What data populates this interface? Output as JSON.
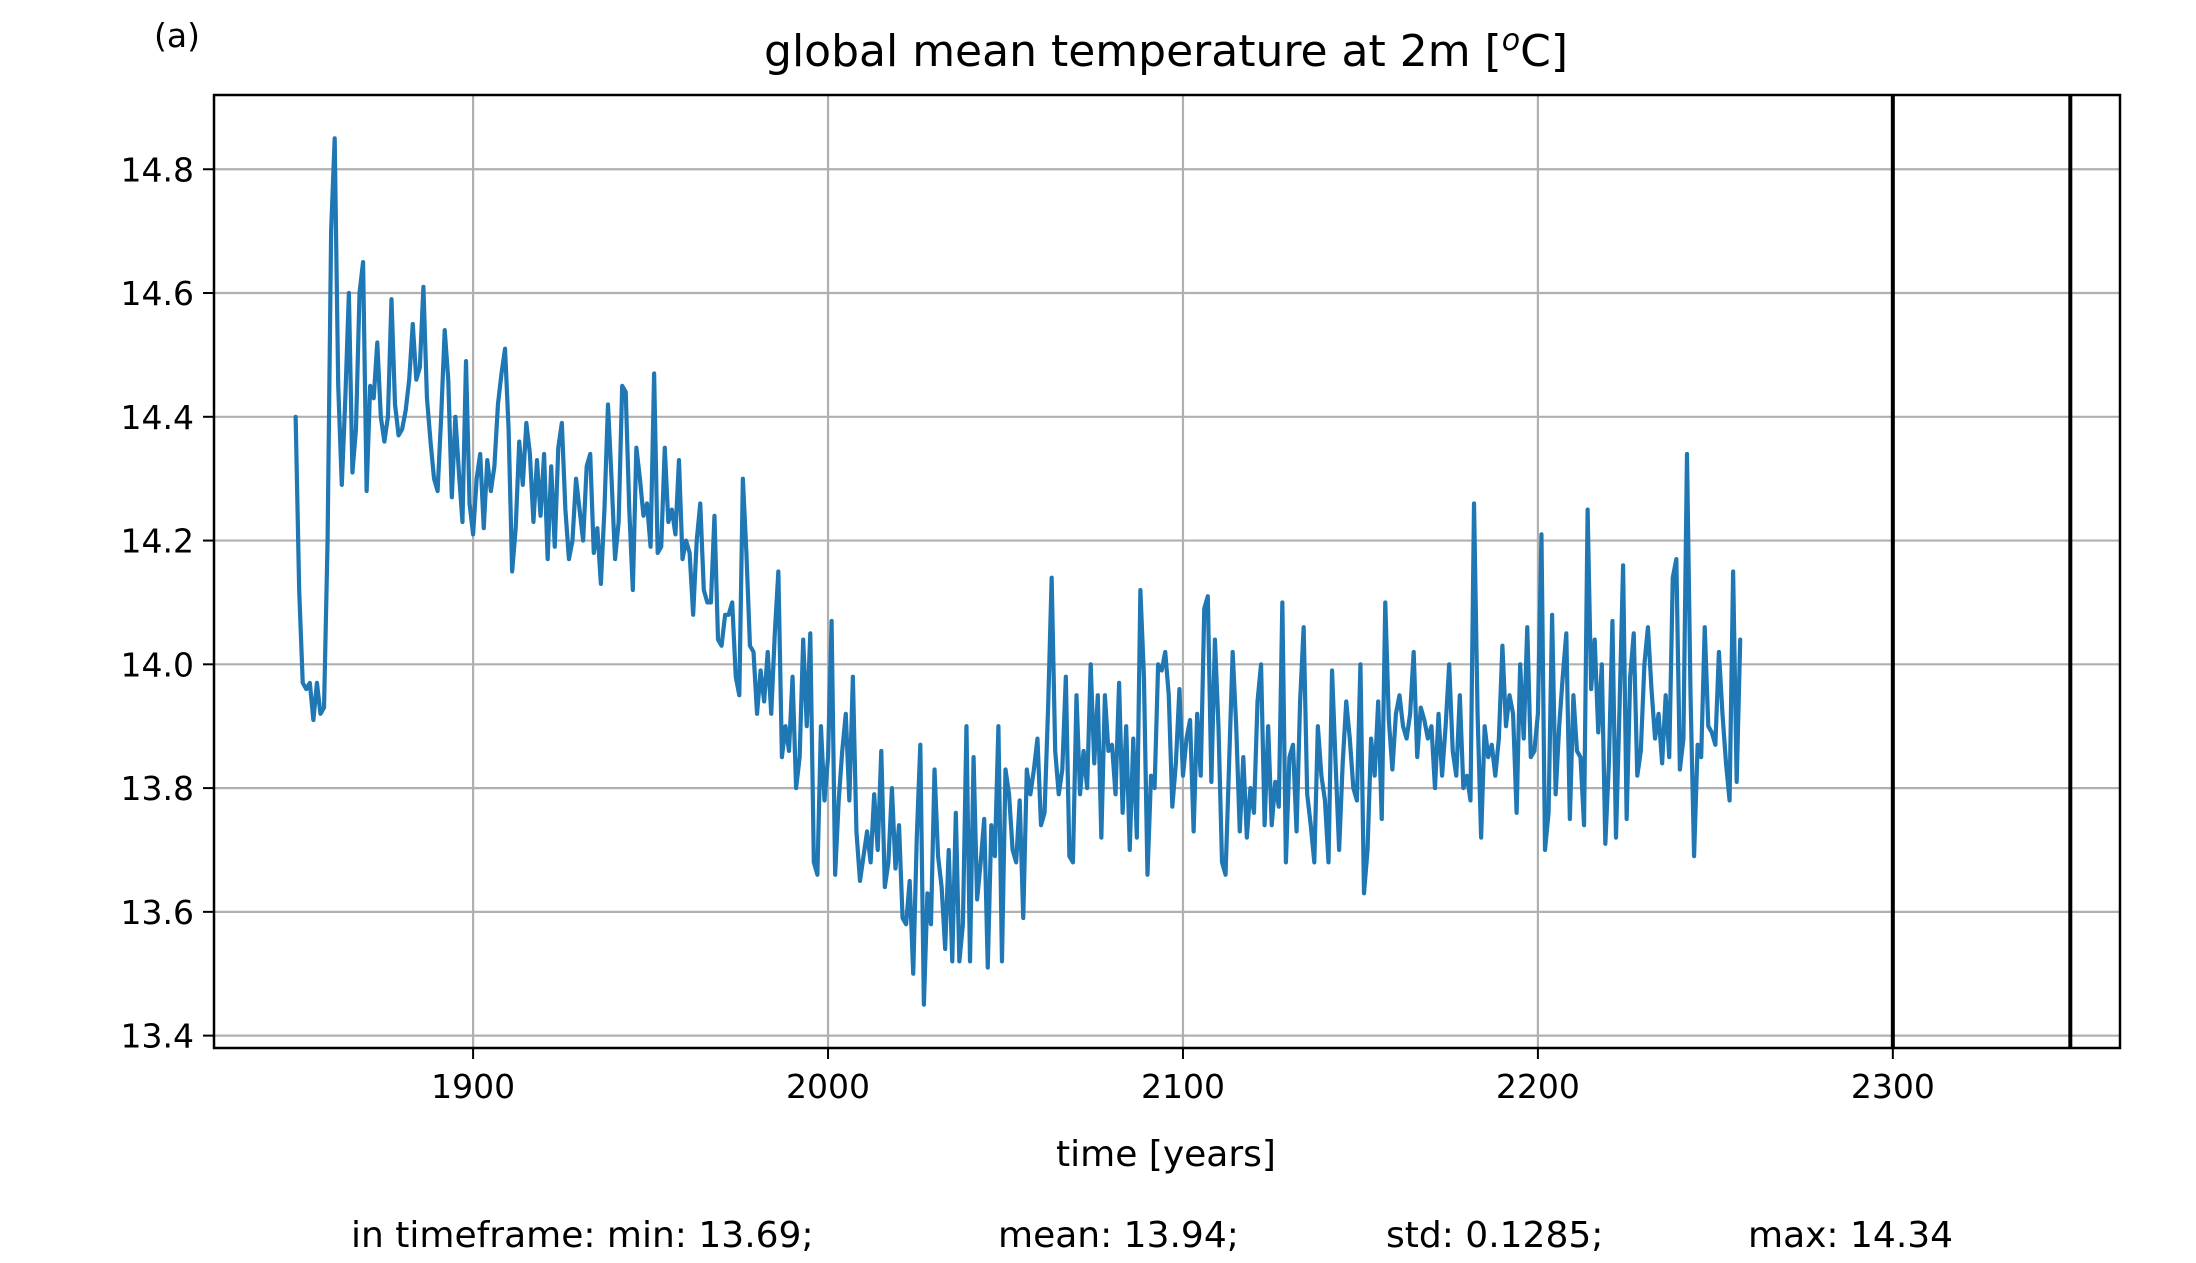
{
  "panel_label": "(a)",
  "title": {
    "prefix": "global mean temperature at 2m [",
    "superscript": "o",
    "suffix": "C]"
  },
  "stats": {
    "min": "in timeframe: min: 13.69;",
    "mean": "mean: 13.94;",
    "std": "std: 0.1285;",
    "max": "max: 14.34"
  },
  "colors": {
    "line": "#1f77b4",
    "grid": "#b0b0b0",
    "vline": "#000000"
  },
  "chart_data": {
    "type": "line",
    "title": "global mean temperature at 2m [oC]",
    "xlabel": "time [years]",
    "ylabel": "",
    "xlim": [
      1827,
      2364
    ],
    "ylim": [
      13.38,
      14.92
    ],
    "xticks": [
      1900,
      2000,
      2100,
      2200,
      2300
    ],
    "yticks": [
      13.4,
      13.6,
      13.8,
      14.0,
      14.2,
      14.4,
      14.6,
      14.8
    ],
    "ytick_labels": [
      "13.4",
      "13.6",
      "13.8",
      "14.0",
      "14.2",
      "14.4",
      "14.6",
      "14.8"
    ],
    "grid": true,
    "vertical_lines": [
      2300,
      2350
    ],
    "series": [
      {
        "x_start": 1850,
        "x_step": 1,
        "values": [
          14.4,
          14.12,
          13.97,
          13.96,
          13.97,
          13.91,
          13.97,
          13.92,
          13.93,
          14.2,
          14.7,
          14.85,
          14.45,
          14.29,
          14.43,
          14.6,
          14.31,
          14.38,
          14.6,
          14.65,
          14.28,
          14.45,
          14.43,
          14.52,
          14.4,
          14.36,
          14.4,
          14.59,
          14.42,
          14.37,
          14.38,
          14.41,
          14.46,
          14.55,
          14.46,
          14.48,
          14.61,
          14.43,
          14.36,
          14.3,
          14.28,
          14.4,
          14.54,
          14.46,
          14.27,
          14.4,
          14.31,
          14.23,
          14.49,
          14.26,
          14.21,
          14.3,
          14.34,
          14.22,
          14.33,
          14.28,
          14.32,
          14.42,
          14.47,
          14.51,
          14.38,
          14.15,
          14.22,
          14.36,
          14.29,
          14.39,
          14.34,
          14.23,
          14.33,
          14.24,
          14.34,
          14.17,
          14.32,
          14.19,
          14.35,
          14.39,
          14.25,
          14.17,
          14.2,
          14.3,
          14.25,
          14.2,
          14.32,
          14.34,
          14.18,
          14.22,
          14.13,
          14.25,
          14.42,
          14.3,
          14.17,
          14.23,
          14.45,
          14.44,
          14.25,
          14.12,
          14.35,
          14.3,
          14.24,
          14.26,
          14.19,
          14.47,
          14.18,
          14.19,
          14.35,
          14.23,
          14.25,
          14.21,
          14.33,
          14.17,
          14.2,
          14.18,
          14.08,
          14.2,
          14.26,
          14.12,
          14.1,
          14.1,
          14.24,
          14.04,
          14.03,
          14.08,
          14.08,
          14.1,
          13.98,
          13.95,
          14.3,
          14.18,
          14.03,
          14.02,
          13.92,
          13.99,
          13.94,
          14.02,
          13.92,
          14.05,
          14.15,
          13.85,
          13.9,
          13.86,
          13.98,
          13.8,
          13.85,
          14.04,
          13.9,
          14.05,
          13.68,
          13.66,
          13.9,
          13.78,
          13.85,
          14.07,
          13.66,
          13.78,
          13.86,
          13.92,
          13.78,
          13.98,
          13.73,
          13.65,
          13.69,
          13.73,
          13.68,
          13.79,
          13.7,
          13.86,
          13.64,
          13.68,
          13.8,
          13.67,
          13.74,
          13.59,
          13.58,
          13.65,
          13.5,
          13.72,
          13.87,
          13.45,
          13.63,
          13.58,
          13.83,
          13.69,
          13.64,
          13.54,
          13.7,
          13.52,
          13.76,
          13.52,
          13.58,
          13.9,
          13.52,
          13.85,
          13.62,
          13.68,
          13.75,
          13.51,
          13.74,
          13.69,
          13.9,
          13.52,
          13.83,
          13.79,
          13.7,
          13.68,
          13.78,
          13.59,
          13.83,
          13.79,
          13.83,
          13.88,
          13.74,
          13.76,
          13.93,
          14.14,
          13.86,
          13.79,
          13.83,
          13.98,
          13.69,
          13.68,
          13.95,
          13.79,
          13.86,
          13.8,
          14.0,
          13.84,
          13.95,
          13.72,
          13.95,
          13.86,
          13.87,
          13.79,
          13.97,
          13.76,
          13.9,
          13.7,
          13.88,
          13.72,
          14.12,
          13.98,
          13.66,
          13.82,
          13.8,
          14.0,
          13.99,
          14.02,
          13.95,
          13.77,
          13.84,
          13.96,
          13.82,
          13.88,
          13.91,
          13.73,
          13.92,
          13.82,
          14.09,
          14.11,
          13.81,
          14.04,
          13.9,
          13.68,
          13.66,
          13.84,
          14.02,
          13.9,
          13.73,
          13.85,
          13.72,
          13.8,
          13.76,
          13.94,
          14.0,
          13.74,
          13.9,
          13.74,
          13.81,
          13.77,
          14.1,
          13.68,
          13.85,
          13.87,
          13.73,
          13.94,
          14.06,
          13.79,
          13.74,
          13.68,
          13.9,
          13.82,
          13.78,
          13.68,
          13.99,
          13.84,
          13.7,
          13.84,
          13.94,
          13.88,
          13.8,
          13.78,
          14.0,
          13.63,
          13.7,
          13.88,
          13.82,
          13.94,
          13.75,
          14.1,
          13.91,
          13.83,
          13.92,
          13.95,
          13.9,
          13.88,
          13.92,
          14.02,
          13.85,
          13.93,
          13.91,
          13.88,
          13.9,
          13.8,
          13.92,
          13.82,
          13.9,
          14.0,
          13.86,
          13.82,
          13.95,
          13.8,
          13.82,
          13.78,
          14.26,
          13.92,
          13.72,
          13.9,
          13.85,
          13.87,
          13.82,
          13.88,
          14.03,
          13.9,
          13.95,
          13.92,
          13.76,
          14.0,
          13.88,
          14.06,
          13.85,
          13.86,
          13.92,
          14.21,
          13.7,
          13.76,
          14.08,
          13.79,
          13.9,
          13.98,
          14.05,
          13.75,
          13.95,
          13.86,
          13.85,
          13.74,
          14.25,
          13.96,
          14.04,
          13.89,
          14.0,
          13.71,
          13.84,
          14.07,
          13.72,
          13.93,
          14.16,
          13.75,
          13.98,
          14.05,
          13.82,
          13.86,
          14.0,
          14.06,
          13.96,
          13.88,
          13.92,
          13.84,
          13.95,
          13.85,
          14.14,
          14.17,
          13.83,
          13.88,
          14.34,
          13.95,
          13.69,
          13.87,
          13.85,
          14.06,
          13.9,
          13.89,
          13.87,
          14.02,
          13.92,
          13.84,
          13.78,
          14.15,
          13.81,
          14.04
        ]
      }
    ]
  }
}
